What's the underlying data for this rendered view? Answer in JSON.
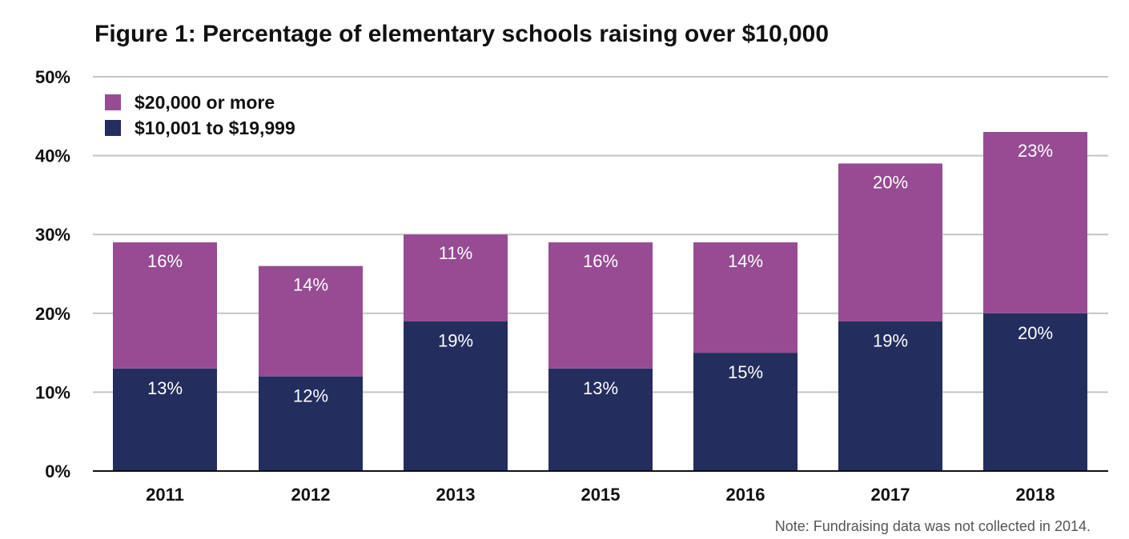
{
  "chart_data": {
    "type": "bar",
    "stacked": true,
    "title": "Figure 1: Percentage of elementary schools raising over $10,000",
    "xlabel": "",
    "ylabel": "",
    "categories": [
      "2011",
      "2012",
      "2013",
      "2015",
      "2016",
      "2017",
      "2018"
    ],
    "series": [
      {
        "name": "$10,001 to $19,999",
        "color": "#232d5e",
        "values": [
          13,
          12,
          19,
          13,
          15,
          19,
          20
        ],
        "labels": [
          "13%",
          "12%",
          "19%",
          "13%",
          "15%",
          "19%",
          "20%"
        ]
      },
      {
        "name": "$20,000 or more",
        "color": "#964b93",
        "values": [
          16,
          14,
          11,
          16,
          14,
          20,
          23
        ],
        "labels": [
          "16%",
          "14%",
          "11%",
          "16%",
          "14%",
          "20%",
          "23%"
        ]
      }
    ],
    "ylim": [
      0,
      50
    ],
    "yticks": [
      0,
      10,
      20,
      30,
      40,
      50
    ],
    "ytick_labels": [
      "0%",
      "10%",
      "20%",
      "30%",
      "40%",
      "50%"
    ],
    "grid": true,
    "legend_position": "top-left",
    "legend_order": [
      "$20,000 or more",
      "$10,001 to $19,999"
    ],
    "note": "Note: Fundraising data was not collected in 2014."
  }
}
